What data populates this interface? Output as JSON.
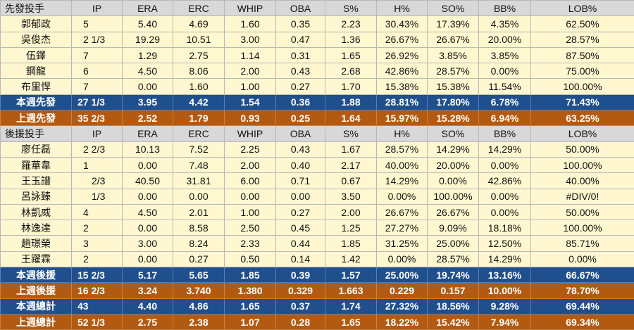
{
  "headers": {
    "starters": [
      "先發投手",
      "IP",
      "ERA",
      "ERC",
      "WHIP",
      "OBA",
      "S%",
      "H%",
      "SO%",
      "BB%",
      "LOB%"
    ],
    "relievers": [
      "後援投手",
      "IP",
      "ERA",
      "ERC",
      "WHIP",
      "OBA",
      "S%",
      "H%",
      "SO%",
      "BB%",
      "LOB%"
    ]
  },
  "starters": [
    [
      "郭郁政",
      "5",
      "5.40",
      "4.69",
      "1.60",
      "0.35",
      "2.23",
      "30.43%",
      "17.39%",
      "4.35%",
      "62.50%"
    ],
    [
      "吳俊杰",
      "2 1/3",
      "19.29",
      "10.51",
      "3.00",
      "0.47",
      "1.36",
      "26.67%",
      "26.67%",
      "20.00%",
      "28.57%"
    ],
    [
      "伍鐸",
      "7",
      "1.29",
      "2.75",
      "1.14",
      "0.31",
      "1.65",
      "26.92%",
      "3.85%",
      "3.85%",
      "87.50%"
    ],
    [
      "鋼龍",
      "6",
      "4.50",
      "8.06",
      "2.00",
      "0.43",
      "2.68",
      "42.86%",
      "28.57%",
      "0.00%",
      "75.00%"
    ],
    [
      "布里悍",
      "7",
      "0.00",
      "1.60",
      "1.00",
      "0.27",
      "1.70",
      "15.38%",
      "15.38%",
      "11.54%",
      "100.00%"
    ]
  ],
  "starters_week": [
    "本週先發",
    "27 1/3",
    "3.95",
    "4.42",
    "1.54",
    "0.36",
    "1.88",
    "28.81%",
    "17.80%",
    "6.78%",
    "71.43%"
  ],
  "starters_last": [
    "上週先發",
    "35 2/3",
    "2.52",
    "1.79",
    "0.93",
    "0.25",
    "1.64",
    "15.97%",
    "15.28%",
    "6.94%",
    "63.25%"
  ],
  "relievers": [
    [
      "廖任磊",
      "2 2/3",
      "10.13",
      "7.52",
      "2.25",
      "0.43",
      "1.67",
      "28.57%",
      "14.29%",
      "14.29%",
      "50.00%"
    ],
    [
      "羅華韋",
      "1",
      "0.00",
      "7.48",
      "2.00",
      "0.40",
      "2.17",
      "40.00%",
      "20.00%",
      "0.00%",
      "100.00%"
    ],
    [
      "王玉譜",
      "2/3",
      "40.50",
      "31.81",
      "6.00",
      "0.71",
      "0.67",
      "14.29%",
      "0.00%",
      "42.86%",
      "40.00%"
    ],
    [
      "呂詠臻",
      "1/3",
      "0.00",
      "0.00",
      "0.00",
      "0.00",
      "3.50",
      "0.00%",
      "100.00%",
      "0.00%",
      "#DIV/0!"
    ],
    [
      "林凱威",
      "4",
      "4.50",
      "2.01",
      "1.00",
      "0.27",
      "2.00",
      "26.67%",
      "26.67%",
      "0.00%",
      "50.00%"
    ],
    [
      "林逸達",
      "2",
      "0.00",
      "8.58",
      "2.50",
      "0.45",
      "1.25",
      "27.27%",
      "9.09%",
      "18.18%",
      "100.00%"
    ],
    [
      "趙璟榮",
      "3",
      "3.00",
      "8.24",
      "2.33",
      "0.44",
      "1.85",
      "31.25%",
      "25.00%",
      "12.50%",
      "85.71%"
    ],
    [
      "王躍霖",
      "2",
      "0.00",
      "0.27",
      "0.50",
      "0.14",
      "1.42",
      "0.00%",
      "28.57%",
      "14.29%",
      "0.00%"
    ]
  ],
  "relievers_week": [
    "本週後援",
    "15 2/3",
    "5.17",
    "5.65",
    "1.85",
    "0.39",
    "1.57",
    "25.00%",
    "19.74%",
    "13.16%",
    "66.67%"
  ],
  "relievers_last": [
    "上週後援",
    "16 2/3",
    "3.24",
    "3.740",
    "1.380",
    "0.329",
    "1.663",
    "0.229",
    "0.157",
    "10.00%",
    "78.70%"
  ],
  "total_week": [
    "本週總計",
    "43",
    "4.40",
    "4.86",
    "1.65",
    "0.37",
    "1.74",
    "27.32%",
    "18.56%",
    "9.28%",
    "69.44%"
  ],
  "total_last": [
    "上週總計",
    "52 1/3",
    "2.75",
    "2.38",
    "1.07",
    "0.28",
    "1.65",
    "18.22%",
    "15.42%",
    "7.94%",
    "69.34%"
  ],
  "colors": {
    "data_bg": "#fff7cf",
    "header_bg": "#d8d8d8",
    "week_bg": "#1f4f8c",
    "last_bg": "#b35a12"
  }
}
